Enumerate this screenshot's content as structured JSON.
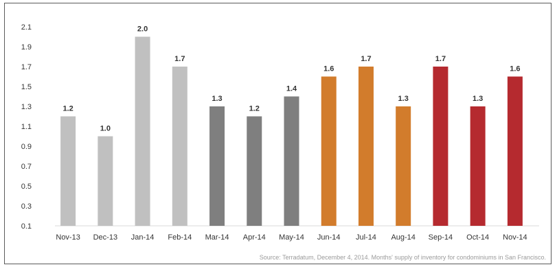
{
  "chart_data": {
    "type": "bar",
    "categories": [
      "Nov-13",
      "Dec-13",
      "Jan-14",
      "Feb-14",
      "Mar-14",
      "Apr-14",
      "May-14",
      "Jun-14",
      "Jul-14",
      "Aug-14",
      "Sep-14",
      "Oct-14",
      "Nov-14"
    ],
    "values": [
      1.2,
      1.0,
      2.0,
      1.7,
      1.3,
      1.2,
      1.4,
      1.6,
      1.7,
      1.3,
      1.7,
      1.3,
      1.6
    ],
    "data_labels": [
      "1.2",
      "1.0",
      "2.0",
      "1.7",
      "1.3",
      "1.2",
      "1.4",
      "1.6",
      "1.7",
      "1.3",
      "1.7",
      "1.3",
      "1.6"
    ],
    "bar_colors": [
      "#c0c0c0",
      "#c0c0c0",
      "#c0c0c0",
      "#c0c0c0",
      "#7f7f7f",
      "#7f7f7f",
      "#7f7f7f",
      "#d27c2c",
      "#d27c2c",
      "#d27c2c",
      "#b52a2f",
      "#b52a2f",
      "#b52a2f"
    ],
    "yticks": [
      "0.1",
      "0.3",
      "0.5",
      "0.7",
      "0.9",
      "1.1",
      "1.3",
      "1.5",
      "1.7",
      "1.9",
      "2.1"
    ],
    "ylim": [
      0.1,
      2.1
    ],
    "grid": false,
    "title": "",
    "xlabel": "",
    "ylabel": ""
  },
  "source_note": "Source: Terradatum,  December 4, 2014. Months' supply of inventory for condominiums in San Francisco."
}
